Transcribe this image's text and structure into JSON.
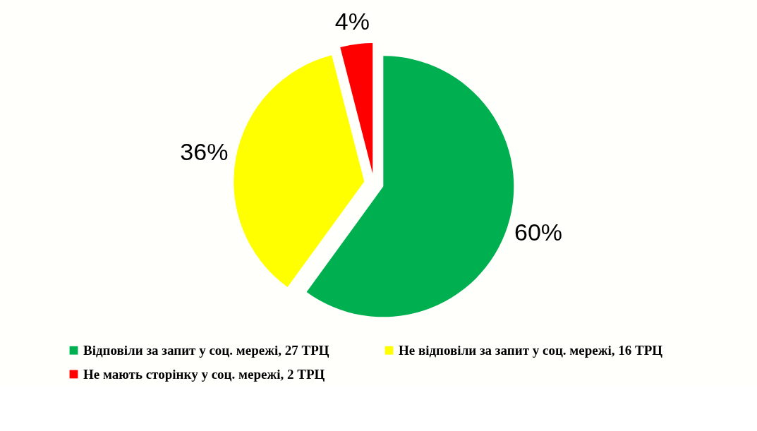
{
  "chart_data": {
    "type": "pie",
    "categories": [
      "Відповіли за запит у соц. мережі, 27 ТРЦ",
      "Не відповіли за запит у соц. мережі, 16 ТРЦ",
      "Не мають сторінку у соц. мережі, 2 ТРЦ"
    ],
    "values": [
      60,
      36,
      4
    ],
    "colors": [
      "#00b050",
      "#ffff00",
      "#ff0000"
    ],
    "value_labels": [
      "60%",
      "36%",
      "4%"
    ],
    "legend": "bottom"
  }
}
